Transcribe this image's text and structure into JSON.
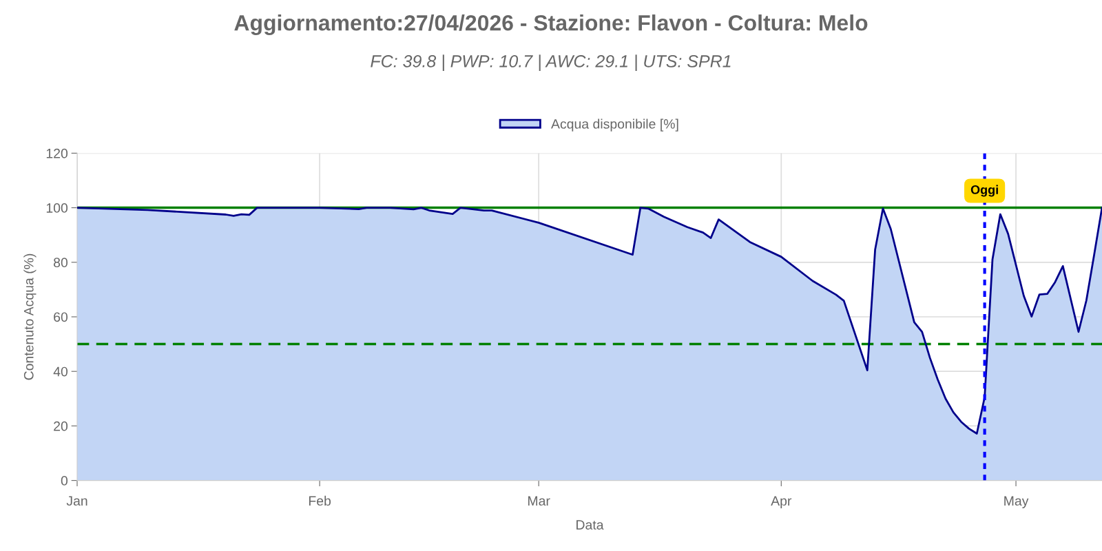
{
  "chart_data": {
    "type": "area",
    "title": "Aggiornamento:27/04/2026 - Stazione: Flavon - Coltura: Melo",
    "subtitle": "FC: 39.8 | PWP: 10.7 | AWC: 29.1 | UTS: SPR1",
    "xlabel": "Data",
    "ylabel": "Contenuto Acqua (%)",
    "x": [
      "2026-01-01",
      "2026-01-10",
      "2026-01-20",
      "2026-01-21",
      "2026-01-22",
      "2026-01-23",
      "2026-01-24",
      "2026-02-01",
      "2026-02-06",
      "2026-02-07",
      "2026-02-10",
      "2026-02-13",
      "2026-02-14",
      "2026-02-15",
      "2026-02-18",
      "2026-02-19",
      "2026-02-22",
      "2026-02-23",
      "2026-03-01",
      "2026-03-13",
      "2026-03-14",
      "2026-03-15",
      "2026-03-17",
      "2026-03-20",
      "2026-03-22",
      "2026-03-23",
      "2026-03-24",
      "2026-03-28",
      "2026-04-01",
      "2026-04-05",
      "2026-04-08",
      "2026-04-09",
      "2026-04-12",
      "2026-04-13",
      "2026-04-14",
      "2026-04-15",
      "2026-04-18",
      "2026-04-19",
      "2026-04-20",
      "2026-04-21",
      "2026-04-22",
      "2026-04-23",
      "2026-04-24",
      "2026-04-25",
      "2026-04-26",
      "2026-04-27",
      "2026-04-28",
      "2026-04-29",
      "2026-04-30",
      "2026-05-02",
      "2026-05-03",
      "2026-05-04",
      "2026-05-05",
      "2026-05-06",
      "2026-05-07",
      "2026-05-09",
      "2026-05-10",
      "2026-05-11",
      "2026-05-12"
    ],
    "series": [
      {
        "name": "Acqua disponibile [%]",
        "color": "#00008b",
        "values": [
          100,
          99.2,
          97.5,
          97.0,
          97.6,
          97.4,
          100,
          100,
          99.5,
          100,
          100,
          99.4,
          100,
          99,
          97.7,
          100,
          99,
          99,
          94.5,
          82.8,
          100,
          99.7,
          96.7,
          92.9,
          90.9,
          88.9,
          95.7,
          87.4,
          82,
          73.2,
          68.1,
          65.9,
          40.4,
          84.6,
          99.7,
          92.2,
          58,
          54.5,
          45,
          37,
          30,
          25,
          21.5,
          19,
          17.2,
          30.5,
          81,
          97.6,
          90.4,
          67.7,
          60.1,
          68.2,
          68.4,
          72.7,
          78.6,
          54.5,
          66,
          82.8,
          100
        ]
      }
    ],
    "xlim": [
      "2026-01-01",
      "2026-05-12"
    ],
    "xticks": [
      {
        "value": "2026-01-01",
        "label": "Jan"
      },
      {
        "value": "2026-02-01",
        "label": "Feb"
      },
      {
        "value": "2026-03-01",
        "label": "Mar"
      },
      {
        "value": "2026-04-01",
        "label": "Apr"
      },
      {
        "value": "2026-05-01",
        "label": "May"
      }
    ],
    "ylim": [
      0,
      120
    ],
    "yticks": [
      0,
      20,
      40,
      60,
      80,
      100,
      120
    ],
    "ref_lines": [
      {
        "axis": "y",
        "value": 100,
        "color": "#008000",
        "line_style": "solid"
      },
      {
        "axis": "y",
        "value": 50,
        "color": "#008000",
        "line_style": "dashed"
      },
      {
        "axis": "x",
        "value": "2026-04-27",
        "label": "Oggi",
        "color": "#0000ff",
        "line_style": "dotted"
      }
    ],
    "grid": true,
    "legend": "top",
    "marker": "none",
    "line_style": "solid"
  }
}
